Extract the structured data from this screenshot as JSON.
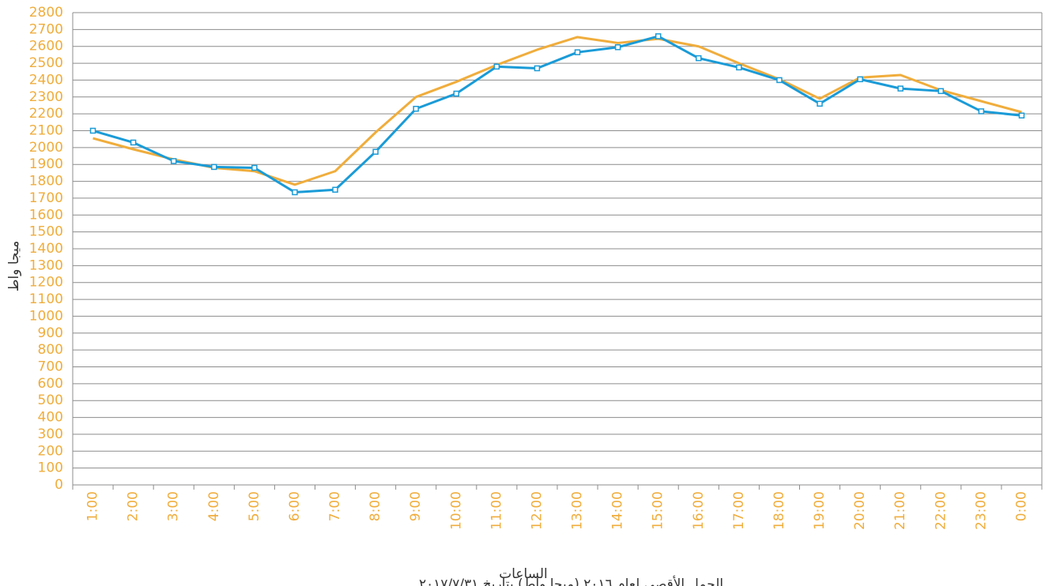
{
  "chart_data": {
    "type": "line",
    "y_label": "ميجا واط",
    "x_label": "الساعات",
    "note": "الحمل الأقصى لعام ٢٠١٦ (ميجا واط) بتاريخ ٢٠١٧/٧/٣١",
    "categories": [
      "1:00",
      "2:00",
      "3:00",
      "4:00",
      "5:00",
      "6:00",
      "7:00",
      "8:00",
      "9:00",
      "10:00",
      "11:00",
      "12:00",
      "13:00",
      "14:00",
      "15:00",
      "16:00",
      "17:00",
      "18:00",
      "19:00",
      "20:00",
      "21:00",
      "22:00",
      "23:00",
      "0:00"
    ],
    "series": [
      {
        "color": "#f0ad3c",
        "markers": false,
        "values": [
          2055,
          1990,
          1930,
          1880,
          1860,
          1780,
          1860,
          2090,
          2300,
          2390,
          2490,
          2580,
          2655,
          2620,
          2645,
          2600,
          2500,
          2405,
          2290,
          2415,
          2430,
          2340,
          2275,
          2210
        ]
      },
      {
        "color": "#1a9bd7",
        "markers": true,
        "values": [
          2100,
          2030,
          1920,
          1885,
          1880,
          1735,
          1750,
          1975,
          2230,
          2320,
          2480,
          2470,
          2565,
          2595,
          2660,
          2530,
          2475,
          2400,
          2260,
          2405,
          2350,
          2335,
          2215,
          2190
        ]
      }
    ],
    "ylim": [
      0,
      2800
    ],
    "yticks": [
      0,
      100,
      200,
      300,
      400,
      500,
      600,
      700,
      800,
      900,
      1000,
      1100,
      1200,
      1300,
      1400,
      1500,
      1600,
      1700,
      1800,
      1900,
      2000,
      2100,
      2200,
      2300,
      2400,
      2500,
      2600,
      2700,
      2800
    ],
    "grid": true,
    "tick_color": "#f0ad3c"
  }
}
